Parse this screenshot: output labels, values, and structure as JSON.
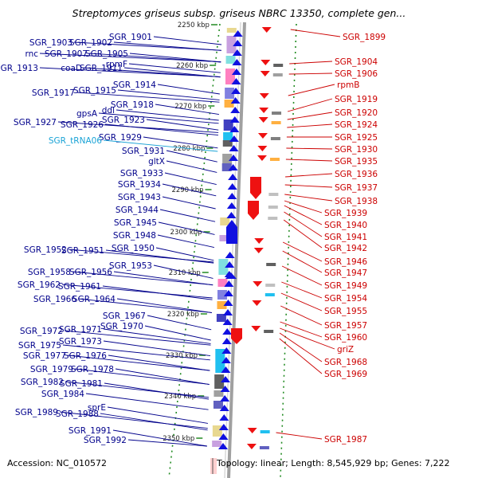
{
  "title": "Streptomyces griseus subsp. griseus NBRC 13350, complete gen...",
  "footer": {
    "accession": "Accession: NC_010572",
    "topology": "Topology: linear; Length: 8,545,929 bp; Genes: 7,222"
  },
  "colors": {
    "left_label": "#00008b",
    "rna_label": "#1aa3d6",
    "right_label": "#cc0000",
    "forward_gene": "#1010e0",
    "reverse_gene": "#ee1111",
    "backbone": "#a0a0a0",
    "tick": "#228b22"
  },
  "scale_labels": [
    "2250 kbp",
    "2260 kbp",
    "2270 kbp",
    "2280 kbp",
    "2290 kbp",
    "2300 kbp",
    "2310 kbp",
    "2320 kbp",
    "2330 kbp",
    "2340 kbp",
    "2350 kbp"
  ],
  "left_labels": [
    "SGR_1901",
    "SGR_1903",
    "SGR_1902",
    "rnc",
    "SGR_1907",
    "SGR_1905",
    "rpmF",
    "SGR_1913",
    "coaD",
    "SGR_1911",
    "SGR_1914",
    "SGR_1917",
    "SGR_1915",
    "SGR_1918",
    "gpsA",
    "ddl",
    "SGR_1923",
    "SGR_1927",
    "SGR_1926",
    "SGR_1929",
    "SGR_tRNA06",
    "SGR_1931",
    "gltX",
    "SGR_1933",
    "SGR_1934",
    "SGR_1943",
    "SGR_1944",
    "SGR_1945",
    "SGR_1948",
    "SGR_1950",
    "SGR_1952",
    "SGR_1951",
    "SGR_1953",
    "SGR_1958",
    "SGR_1956",
    "SGR_1962",
    "SGR_1961",
    "SGR_1966",
    "SGR_1964",
    "SGR_1967",
    "SGR_1970",
    "SGR_1972",
    "SGR_1971",
    "SGR_1973",
    "SGR_1975",
    "SGR_1977",
    "SGR_1976",
    "SGR_1979",
    "SGR_1978",
    "SGR_1982",
    "SGR_1981",
    "SGR_1984",
    "sprE",
    "SGR_1989",
    "SGR_1988",
    "SGR_1991",
    "SGR_1992"
  ],
  "right_labels": [
    "SGR_1899",
    "SGR_1904",
    "SGR_1906",
    "rpmB",
    "SGR_1919",
    "SGR_1920",
    "SGR_1924",
    "SGR_1925",
    "SGR_1930",
    "SGR_1935",
    "SGR_1936",
    "SGR_1937",
    "SGR_1938",
    "SGR_1939",
    "SGR_1940",
    "SGR_1941",
    "SGR_1942",
    "SGR_1946",
    "SGR_1947",
    "SGR_1949",
    "SGR_1954",
    "SGR_1955",
    "SGR_1957",
    "SGR_1960",
    "griZ",
    "SGR_1968",
    "SGR_1969",
    "SGR_1987"
  ]
}
